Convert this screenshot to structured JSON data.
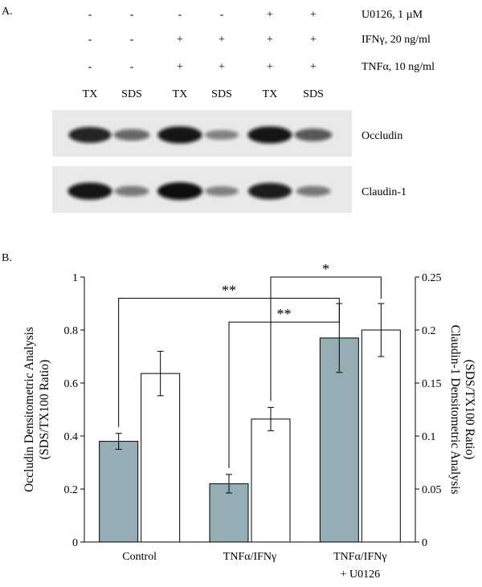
{
  "panel_a": {
    "label": "A.",
    "rows": [
      {
        "label": "U0126, 1 µM",
        "signs": [
          "-",
          "-",
          "-",
          "-",
          "+",
          "+"
        ]
      },
      {
        "label": "IFNγ, 20 ng/ml",
        "signs": [
          "-",
          "-",
          "+",
          "+",
          "+",
          "+"
        ]
      },
      {
        "label": "TNFα, 10 ng/ml",
        "signs": [
          "-",
          "-",
          "+",
          "+",
          "+",
          "+"
        ]
      }
    ],
    "lanes": [
      "TX",
      "SDS",
      "TX",
      "SDS",
      "TX",
      "SDS"
    ],
    "blots": [
      {
        "label": "Occludin",
        "intensities": [
          0.85,
          0.45,
          0.95,
          0.3,
          0.95,
          0.55
        ]
      },
      {
        "label": "Claudin-1",
        "intensities": [
          0.95,
          0.35,
          1.0,
          0.3,
          0.9,
          0.35
        ]
      }
    ],
    "colors": {
      "band": "#0a0a0a",
      "blot_bg": "#e9e9e9"
    }
  },
  "panel_b": {
    "label": "B."
  },
  "chart_data": {
    "type": "bar",
    "categories": [
      "Control",
      "TNFα/IFNγ",
      "TNFα/IFNγ\n+ U0126"
    ],
    "category_lines": [
      [
        "Control"
      ],
      [
        "TNFα/IFNγ"
      ],
      [
        "TNFα/IFNγ",
        "+ U0126"
      ]
    ],
    "series": [
      {
        "axis": "left",
        "values": [
          0.38,
          0.22,
          0.77
        ],
        "errors": [
          0.03,
          0.035,
          0.13
        ],
        "color": "#97adb5"
      },
      {
        "axis": "right",
        "values": [
          0.159,
          0.116,
          0.2
        ],
        "errors": [
          0.021,
          0.011,
          0.025
        ],
        "color": "#ffffff"
      }
    ],
    "ylabel_left": [
      "Occludin Densitometric Analysis",
      "(SDS/TX100 Ratio)"
    ],
    "ylabel_right": [
      "Claudin-1 Densitometric Analysis",
      "(SDS/TX100 Ratio)"
    ],
    "ylim_left": [
      0,
      1
    ],
    "yticks_left": [
      0,
      0.2,
      0.4,
      0.6,
      0.8,
      1
    ],
    "ytick_labels_left": [
      "0",
      "0.2",
      "0.4",
      "0.6",
      "0.8",
      "1"
    ],
    "ylim_right": [
      0,
      0.25
    ],
    "yticks_right": [
      0,
      0.05,
      0.1,
      0.15,
      0.2,
      0.25
    ],
    "ytick_labels_right": [
      "0",
      "0.05",
      "0.1",
      "0.15",
      "0.2",
      "0.25"
    ],
    "grid": false,
    "significance": [
      {
        "label": "**",
        "from": [
          0,
          0
        ],
        "to": [
          2,
          0
        ],
        "level": 0.92
      },
      {
        "label": "**",
        "from": [
          1,
          0
        ],
        "to": [
          2,
          0
        ],
        "level": 0.83
      },
      {
        "label": "*",
        "from": [
          1,
          1
        ],
        "to": [
          2,
          1
        ],
        "level": 1.0
      }
    ]
  }
}
